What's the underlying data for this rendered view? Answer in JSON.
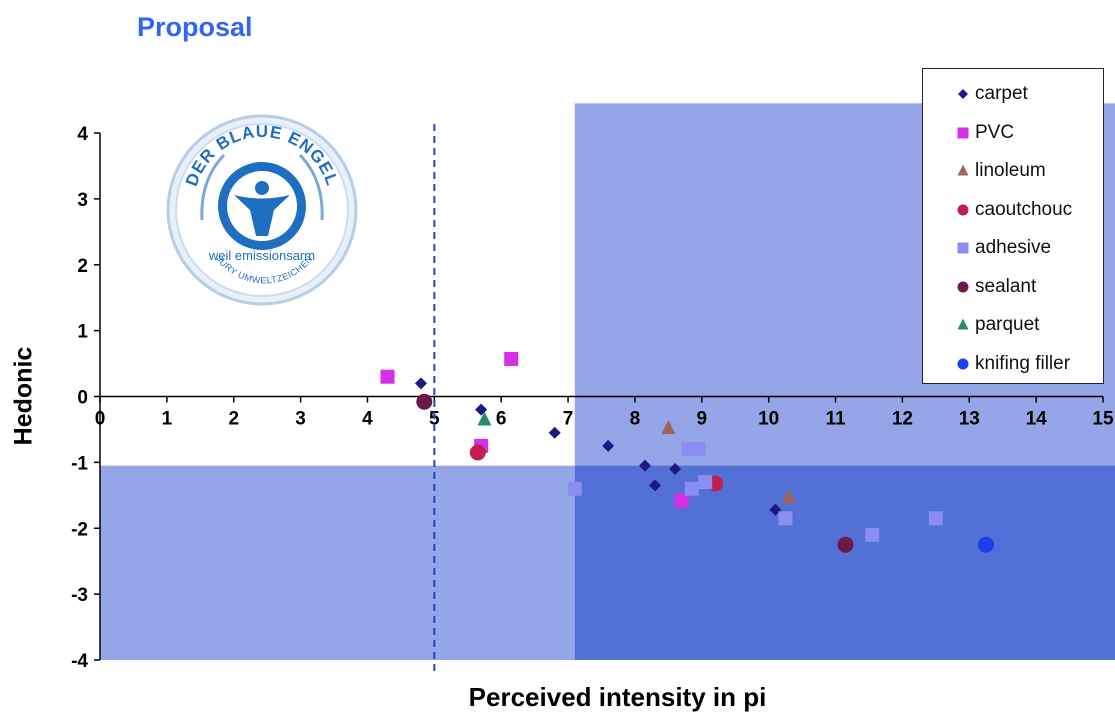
{
  "slide": {
    "title": "Proposal"
  },
  "colors": {
    "region_light": "#95a6e8",
    "region_dark": "#5270d6",
    "dashed_line": "#2244bb",
    "logo_blue": "#1e6fc0"
  },
  "logo": {
    "top_text": "DER BLAUE ENGEL",
    "inner_text": "weil emissionsarm",
    "bottom_text": "JURY UMWELTZEICHEN"
  },
  "chart_data": {
    "type": "scatter",
    "title": "",
    "xlabel": "Perceived intensity in pi",
    "ylabel": "Hedonic",
    "xlim": [
      0,
      15
    ],
    "ylim": [
      -4,
      4
    ],
    "x_ticks": [
      "0",
      "1",
      "2",
      "3",
      "4",
      "5",
      "6",
      "7",
      "8",
      "9",
      "10",
      "11",
      "12",
      "13",
      "14",
      "15"
    ],
    "y_ticks": [
      "-4",
      "-3",
      "-2",
      "-1",
      "0",
      "1",
      "2",
      "3",
      "4"
    ],
    "grid": false,
    "legend_position": "top-right",
    "reference_line_x": 5,
    "regions": [
      {
        "shade": "light",
        "x_from": 7.1,
        "x_to": 15.3,
        "y_from": -4,
        "y_to": 4.45
      },
      {
        "shade": "light",
        "x_from": 0,
        "x_to": 7.1,
        "y_from": -4,
        "y_to": -1.05
      },
      {
        "shade": "dark",
        "x_from": 7.1,
        "x_to": 15.3,
        "y_from": -4,
        "y_to": -1.05
      }
    ],
    "series": [
      {
        "name": "carpet",
        "marker": "diamond",
        "color": "#1a1a80",
        "points": [
          [
            4.8,
            0.2
          ],
          [
            5.7,
            -0.2
          ],
          [
            6.8,
            -0.55
          ],
          [
            7.6,
            -0.75
          ],
          [
            8.15,
            -1.05
          ],
          [
            8.3,
            -1.35
          ],
          [
            8.6,
            -1.1
          ],
          [
            10.1,
            -1.72
          ]
        ]
      },
      {
        "name": "PVC",
        "marker": "square",
        "color": "#d92ee8",
        "points": [
          [
            4.3,
            0.3
          ],
          [
            6.15,
            0.57
          ],
          [
            5.7,
            -0.75
          ],
          [
            8.7,
            -1.58
          ]
        ]
      },
      {
        "name": "linoleum",
        "marker": "triangle",
        "color": "#a0645f",
        "points": [
          [
            8.5,
            -0.48
          ],
          [
            10.3,
            -1.53
          ]
        ]
      },
      {
        "name": "caoutchouc",
        "marker": "circle",
        "color": "#c02050",
        "points": [
          [
            5.65,
            -0.85
          ],
          [
            9.2,
            -1.32
          ]
        ]
      },
      {
        "name": "adhesive",
        "marker": "square",
        "color": "#8a8ef2",
        "points": [
          [
            7.1,
            -1.4
          ],
          [
            8.8,
            -0.8
          ],
          [
            8.95,
            -0.8
          ],
          [
            8.85,
            -1.4
          ],
          [
            9.05,
            -1.3
          ],
          [
            10.25,
            -1.85
          ],
          [
            11.55,
            -2.1
          ],
          [
            12.5,
            -1.85
          ]
        ]
      },
      {
        "name": "sealant",
        "marker": "circle",
        "color": "#6a1a48",
        "points": [
          [
            4.85,
            -0.08
          ],
          [
            11.15,
            -2.25
          ]
        ]
      },
      {
        "name": "parquet",
        "marker": "triangle",
        "color": "#2a8a70",
        "points": [
          [
            5.75,
            -0.35
          ]
        ]
      },
      {
        "name": "knifing filler",
        "marker": "circle",
        "color": "#1a40ee",
        "points": [
          [
            13.25,
            -2.25
          ]
        ]
      }
    ]
  }
}
